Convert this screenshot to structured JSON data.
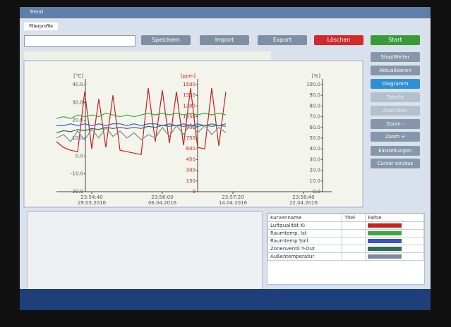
{
  "window": {
    "title": "Trend",
    "tab": "Filterprofile"
  },
  "toolbar": {
    "buttons": [
      "Speichern",
      "Import",
      "Export",
      "Löschen",
      "Start"
    ]
  },
  "side_buttons": [
    "Stop/Weiter",
    "Aktualisieren",
    "Diagramm",
    "Tabelle",
    "Ansichten",
    "Zoom -",
    "Zoom +",
    "Einstellungen",
    "Cursor ein/aus"
  ],
  "chart_data": {
    "type": "line",
    "y_label": "[°C]",
    "y2_label": "[ppm]",
    "y3_label": "[%]",
    "xlim": [
      86040,
      86352
    ],
    "xticks": [
      {
        "value": 86080,
        "label": "23:54:40",
        "date": "29.03.2016"
      },
      {
        "value": 86160,
        "label": "23:56:00",
        "date": "06.04.2016"
      },
      {
        "value": 86240,
        "label": "23:57:20",
        "date": "14.04.2016"
      },
      {
        "value": 86320,
        "label": "23:58:40",
        "date": "22.04.2016"
      }
    ],
    "ylim": [
      -20,
      40
    ],
    "yticks": [
      {
        "value": 40,
        "label": "40.0"
      },
      {
        "value": 30,
        "label": "30.0"
      },
      {
        "value": 20,
        "label": "20.0"
      },
      {
        "value": 10,
        "label": "10.0"
      },
      {
        "value": 0,
        "label": "0.0"
      },
      {
        "value": -10,
        "label": "-10.0"
      },
      {
        "value": -20,
        "label": "-20.0"
      }
    ],
    "y2lim": [
      0,
      1500
    ],
    "y2ticks": [
      1500,
      1350,
      1200,
      1050,
      900,
      750,
      600,
      450,
      300,
      150,
      0
    ],
    "y3lim": [
      0,
      100
    ],
    "y3ticks": [
      {
        "value": 100,
        "label": "100.0"
      },
      {
        "value": 90,
        "label": "90.0"
      },
      {
        "value": 80,
        "label": "80.0"
      },
      {
        "value": 70,
        "label": "70.0"
      },
      {
        "value": 60,
        "label": "60.0"
      },
      {
        "value": 50,
        "label": "50.0"
      },
      {
        "value": 40,
        "label": "40.0"
      },
      {
        "value": 30,
        "label": "30.0"
      },
      {
        "value": 20,
        "label": "20.0"
      },
      {
        "value": 10,
        "label": "10.0"
      },
      {
        "value": 0,
        "label": "0.0"
      }
    ],
    "x": [
      86040,
      86048,
      86056,
      86064,
      86072,
      86080,
      86088,
      86096,
      86104,
      86112,
      86120,
      86128,
      86136,
      86144,
      86152,
      86160,
      86168,
      86176,
      86184,
      86192,
      86200,
      86208,
      86216,
      86224,
      86232
    ],
    "series": [
      {
        "name": "Luftqualität Ki",
        "color": "#c8201c",
        "axis": "y2",
        "values": [
          700,
          620,
          580,
          560,
          1400,
          600,
          1300,
          620,
          1350,
          580,
          560,
          540,
          520,
          1450,
          700,
          1420,
          680,
          1400,
          650,
          1450,
          620,
          600,
          1450,
          640,
          1400
        ]
      },
      {
        "name": "Raumtemp. Ist",
        "color": "#3aa83a",
        "axis": "y",
        "values": [
          21,
          22,
          21,
          23,
          22,
          23,
          22,
          24,
          23,
          22,
          23,
          22,
          23,
          24,
          23,
          24,
          23,
          24,
          23,
          24,
          23,
          24,
          23,
          24,
          23
        ]
      },
      {
        "name": "Raumtemp Soll",
        "color": "#3b54c8",
        "axis": "y",
        "values": [
          17,
          17,
          18,
          17,
          18,
          17,
          18,
          17,
          18,
          18,
          17,
          18,
          17,
          18,
          18,
          17,
          18,
          17,
          18,
          17,
          18,
          17,
          18,
          17,
          18
        ]
      },
      {
        "name": "Zonenventil Y-Out",
        "color": "#2f6b55",
        "axis": "y3",
        "values": [
          55,
          57,
          56,
          58,
          57,
          59,
          58,
          60,
          59,
          60,
          59,
          60,
          59,
          61,
          60,
          62,
          61,
          62,
          61,
          62,
          61,
          62,
          61,
          62,
          61
        ]
      },
      {
        "name": "Außentemperatur",
        "color": "#7d8a99",
        "axis": "y",
        "values": [
          10,
          12,
          8,
          14,
          9,
          15,
          10,
          16,
          11,
          14,
          10,
          13,
          9,
          12,
          10,
          16,
          11,
          17,
          12,
          18,
          13,
          17,
          12,
          16,
          13
        ]
      }
    ]
  },
  "legend_table": {
    "headers": [
      "Kurvenname",
      "Titel",
      "Farbe"
    ]
  }
}
